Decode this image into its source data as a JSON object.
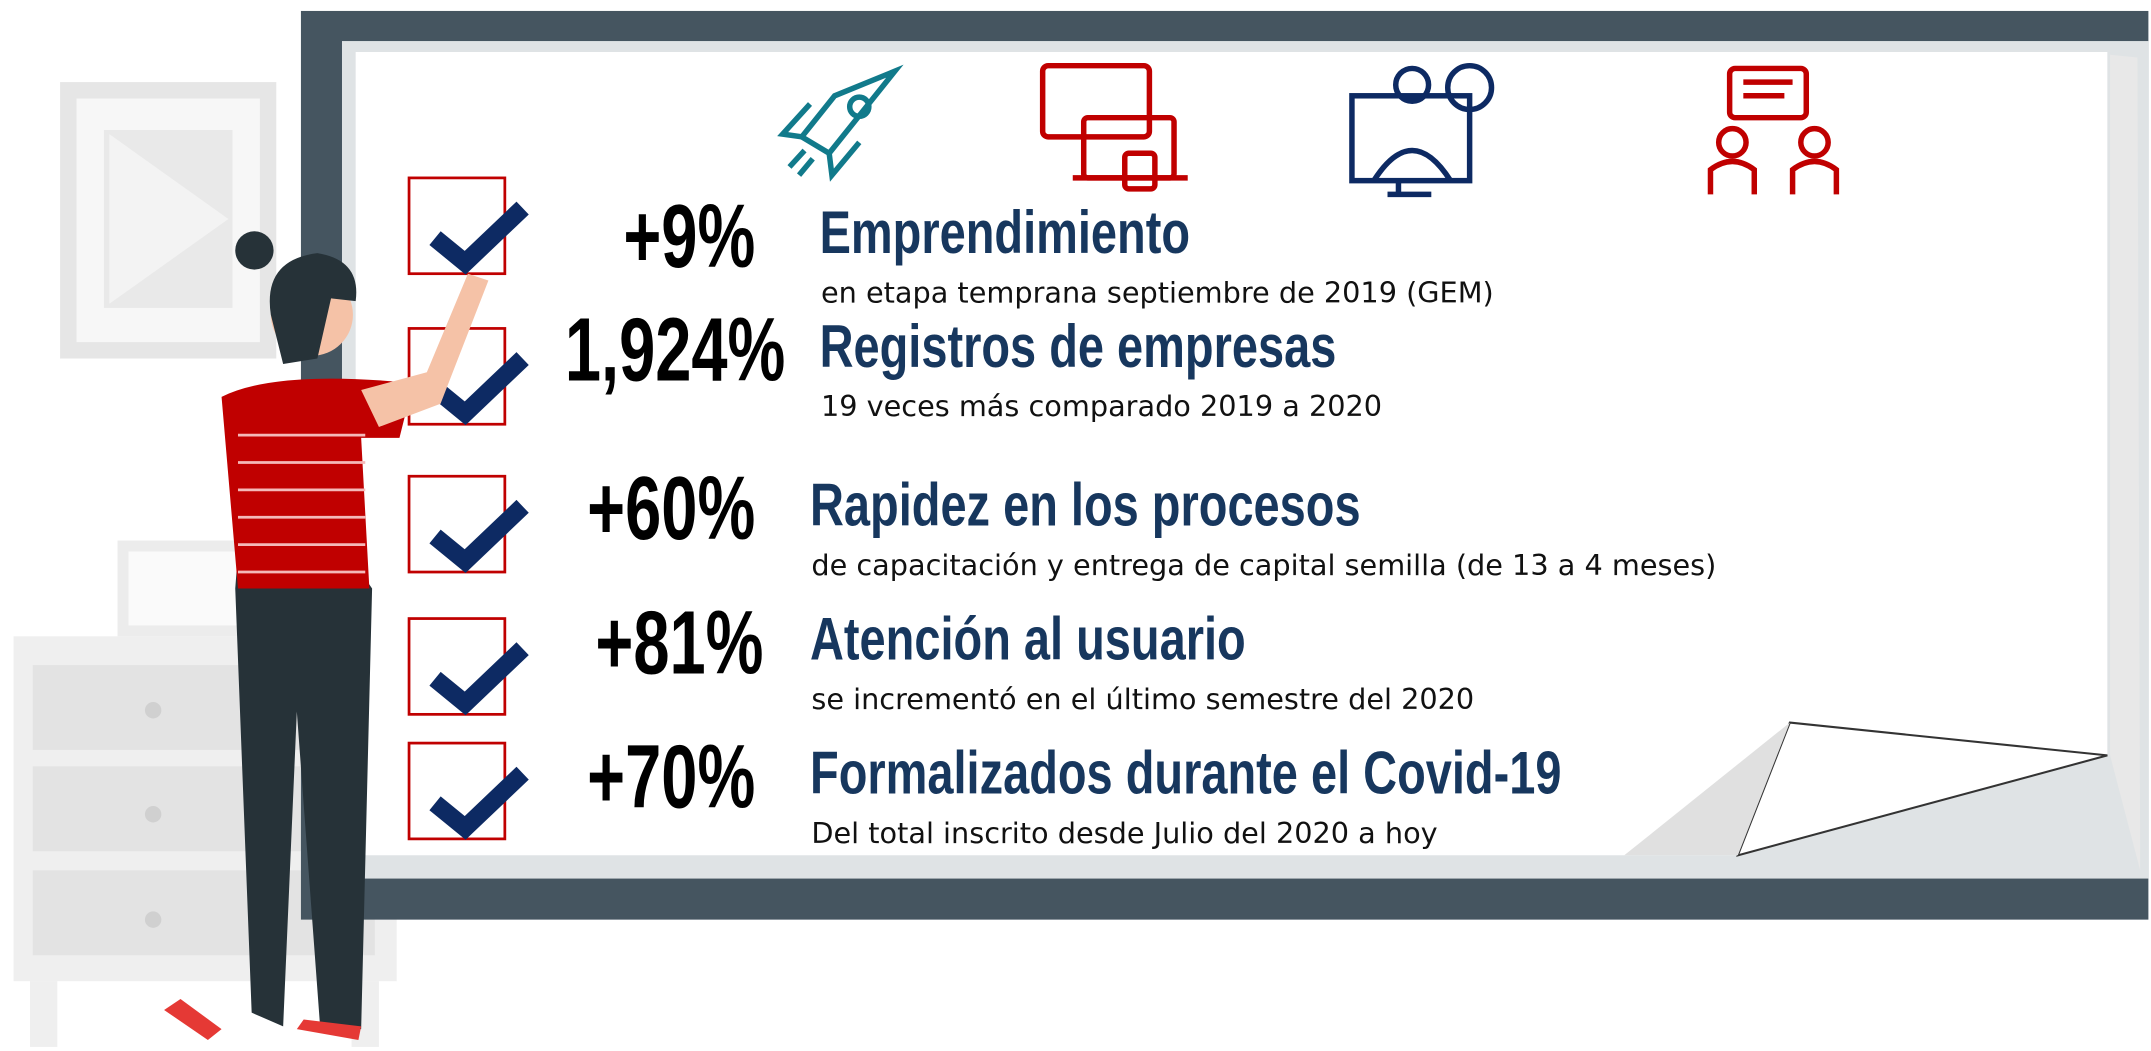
{
  "items": [
    {
      "stat": "+9%",
      "title": "Emprendimiento",
      "subtitle": "en etapa temprana septiembre de 2019 (GEM)"
    },
    {
      "stat": "1,924%",
      "title": "Registros de empresas",
      "subtitle": "19 veces más comparado 2019 a 2020"
    },
    {
      "stat": "+60%",
      "title": "Rapidez en los procesos",
      "subtitle": "de capacitación y entrega de capital semilla (de 13 a 4 meses)"
    },
    {
      "stat": "+81%",
      "title": "Atención al usuario",
      "subtitle": "se incrementó en el último semestre del 2020"
    },
    {
      "stat": "+70%",
      "title": "Formalizados durante el Covid-19",
      "subtitle": "Del total inscrito desde Julio del 2020 a hoy"
    }
  ]
}
